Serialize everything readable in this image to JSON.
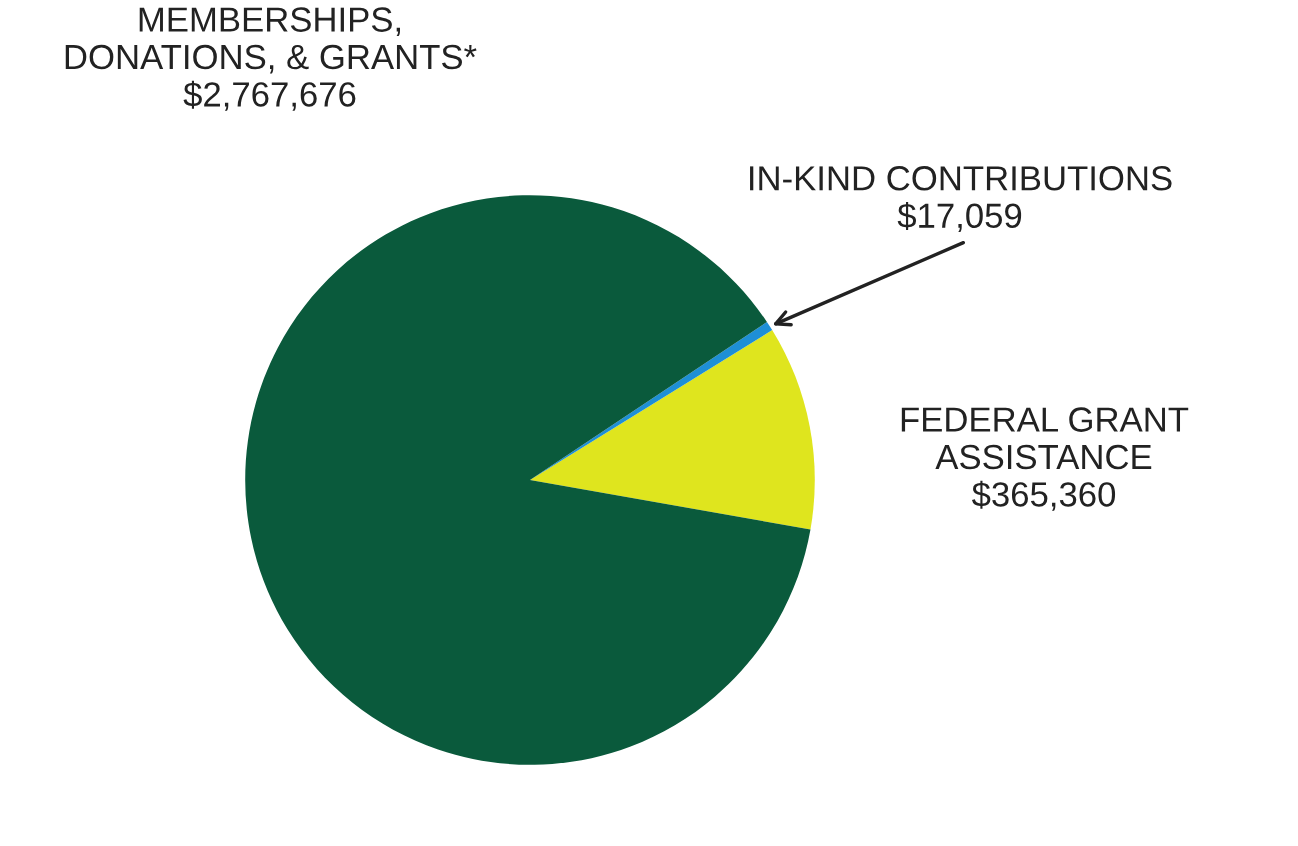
{
  "chart_data": {
    "type": "pie",
    "categories": [
      "FEDERAL GRANT\nASSISTANCE",
      "IN-KIND CONTRIBUTIONS",
      "MEMBERSHIPS,\nDONATIONS, & GRANTS*"
    ],
    "values": [
      365360,
      17059,
      2767676
    ],
    "value_labels": [
      "$365,360",
      "$17,059",
      "$2,767,676"
    ],
    "colors": [
      "#dfe51e",
      "#1e8fd6",
      "#0a5a3c"
    ],
    "legend": false
  }
}
